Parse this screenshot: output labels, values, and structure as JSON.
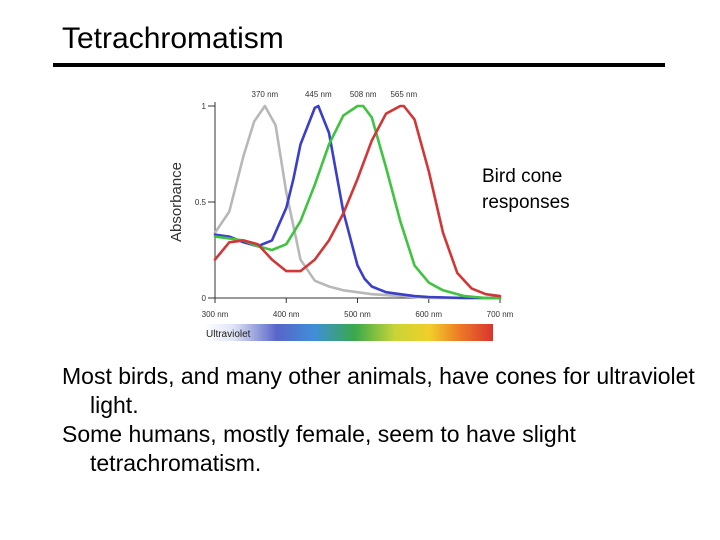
{
  "slide": {
    "title": "Tetrachromatism",
    "annotation_lines": [
      "Bird cone",
      "responses"
    ],
    "paragraphs": [
      "Most birds, and many other animals, have cones for ultraviolet light.",
      "Some humans, mostly female, seem to have slight tetrachromatism."
    ]
  },
  "chart_data": {
    "type": "line",
    "ylabel": "Absorbance",
    "x_range": [
      300,
      700
    ],
    "ylim": [
      0,
      1
    ],
    "x_ticks": [
      "300 nm",
      "400 nm",
      "500 nm",
      "600 nm",
      "700 nm"
    ],
    "x_tick_values": [
      300,
      400,
      500,
      600,
      700
    ],
    "y_ticks": [
      "1",
      "0.5",
      "0"
    ],
    "y_tick_values": [
      1,
      0.5,
      0
    ],
    "peak_labels": [
      "370 nm",
      "445 nm",
      "508 nm",
      "565 nm"
    ],
    "spectrum_label": "Ultraviolet",
    "series": [
      {
        "color": "#b8b8b8",
        "peak": 370,
        "x": [
          300,
          320,
          340,
          355,
          370,
          385,
          400,
          420,
          440,
          460,
          480,
          500,
          520,
          540,
          560,
          580,
          600,
          650,
          700
        ],
        "y": [
          0.34,
          0.45,
          0.74,
          0.92,
          1.0,
          0.9,
          0.55,
          0.2,
          0.09,
          0.06,
          0.04,
          0.03,
          0.02,
          0.015,
          0.01,
          0.005,
          0.0,
          0.0,
          0.0
        ]
      },
      {
        "color": "#3a3ec8",
        "peak": 445,
        "x": [
          300,
          320,
          340,
          360,
          380,
          400,
          410,
          420,
          440,
          445,
          460,
          480,
          500,
          510,
          520,
          540,
          560,
          580,
          600,
          650,
          700
        ],
        "y": [
          0.33,
          0.32,
          0.29,
          0.27,
          0.3,
          0.47,
          0.62,
          0.8,
          0.99,
          1.0,
          0.86,
          0.45,
          0.17,
          0.1,
          0.06,
          0.03,
          0.02,
          0.01,
          0.005,
          0.0,
          0.0
        ]
      },
      {
        "color": "#3ec43e",
        "peak": 508,
        "x": [
          300,
          320,
          340,
          360,
          380,
          400,
          420,
          440,
          460,
          480,
          500,
          508,
          520,
          540,
          560,
          580,
          600,
          620,
          650,
          680,
          700
        ],
        "y": [
          0.32,
          0.31,
          0.3,
          0.27,
          0.25,
          0.28,
          0.4,
          0.59,
          0.8,
          0.95,
          1.0,
          1.0,
          0.94,
          0.68,
          0.4,
          0.17,
          0.08,
          0.04,
          0.01,
          0.0,
          0.0
        ]
      },
      {
        "color": "#d23636",
        "peak": 565,
        "x": [
          300,
          320,
          340,
          360,
          380,
          400,
          420,
          440,
          460,
          480,
          500,
          520,
          540,
          560,
          565,
          580,
          600,
          620,
          640,
          660,
          680,
          700
        ],
        "y": [
          0.2,
          0.29,
          0.3,
          0.28,
          0.2,
          0.14,
          0.14,
          0.2,
          0.3,
          0.44,
          0.62,
          0.82,
          0.96,
          1.0,
          1.0,
          0.93,
          0.66,
          0.34,
          0.13,
          0.05,
          0.02,
          0.01
        ]
      }
    ]
  }
}
